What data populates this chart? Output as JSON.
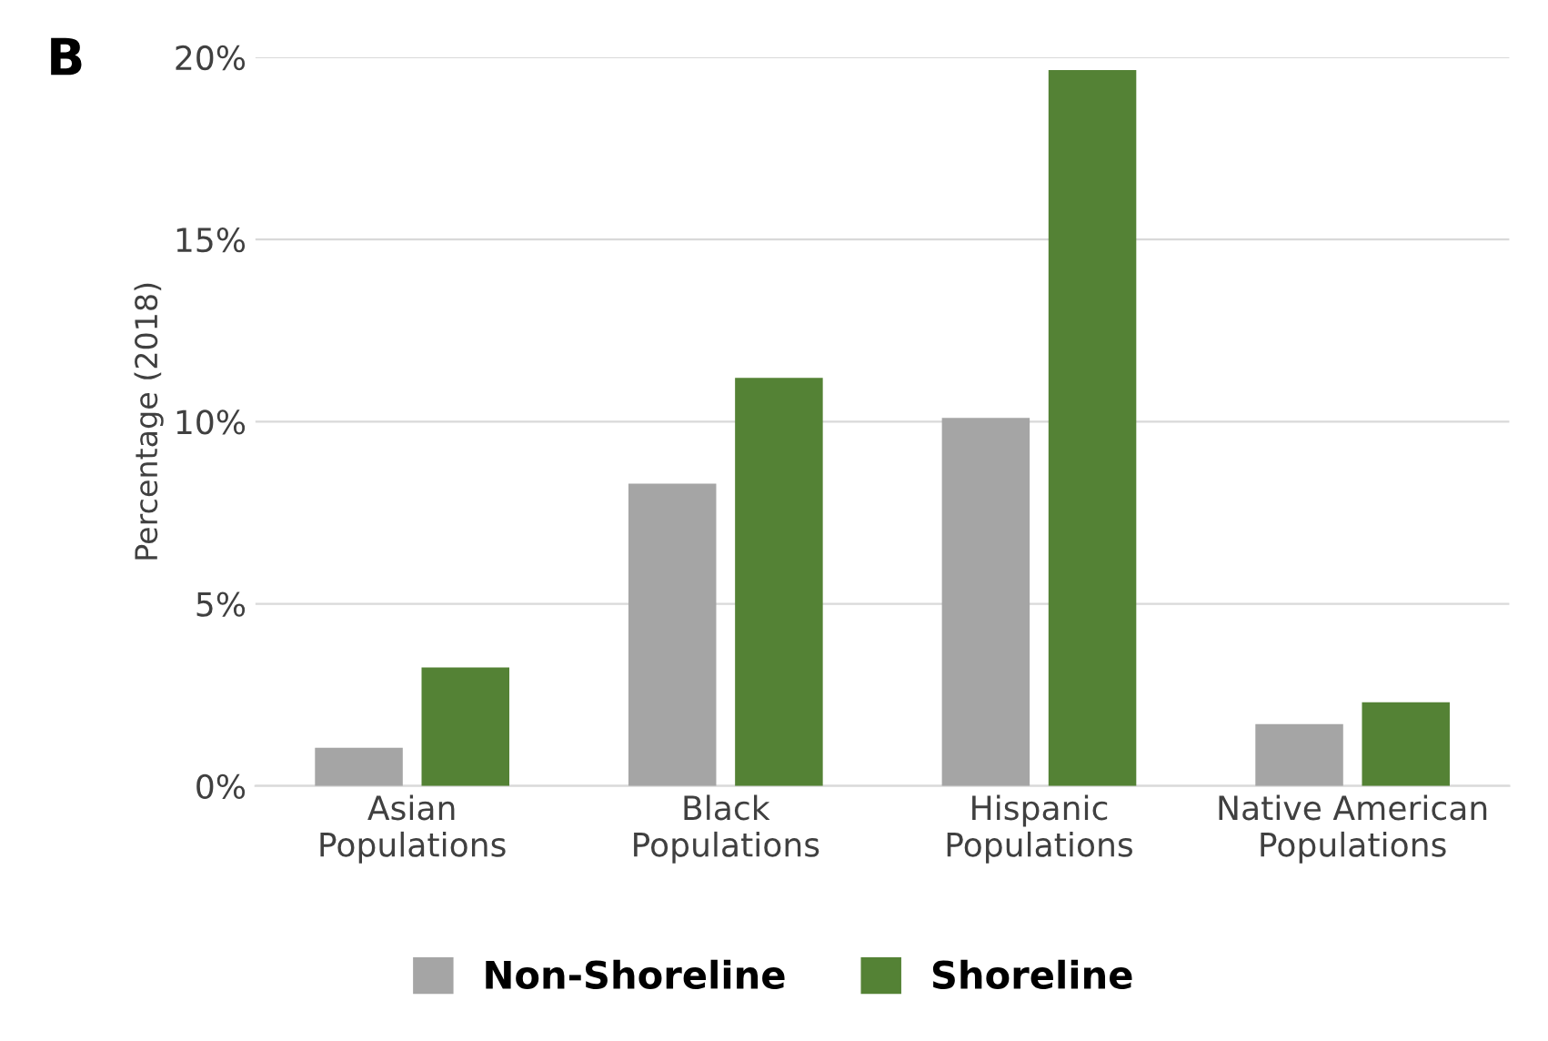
{
  "chart_data": {
    "type": "bar",
    "ylabel": "Percentage (2018)",
    "annotations": [
      "B"
    ],
    "categories": [
      "Asian\nPopulations",
      "Black\nPopulations",
      "Hispanic\nPopulations",
      "Native American\nPopulations"
    ],
    "series": [
      {
        "name": "Non-Shoreline",
        "color": "#a5a5a5",
        "values": [
          1.05,
          8.3,
          10.1,
          1.7
        ]
      },
      {
        "name": "Shoreline",
        "color": "#548235",
        "values": [
          3.25,
          11.2,
          19.65,
          2.3
        ]
      }
    ],
    "ylim": [
      0,
      20
    ],
    "yticks": [
      {
        "value": 0,
        "label": "0%"
      },
      {
        "value": 5,
        "label": "5%"
      },
      {
        "value": 10,
        "label": "10%"
      },
      {
        "value": 15,
        "label": "15%"
      },
      {
        "value": 20,
        "label": "20%"
      }
    ],
    "grid": "y",
    "legend": "bottom"
  }
}
